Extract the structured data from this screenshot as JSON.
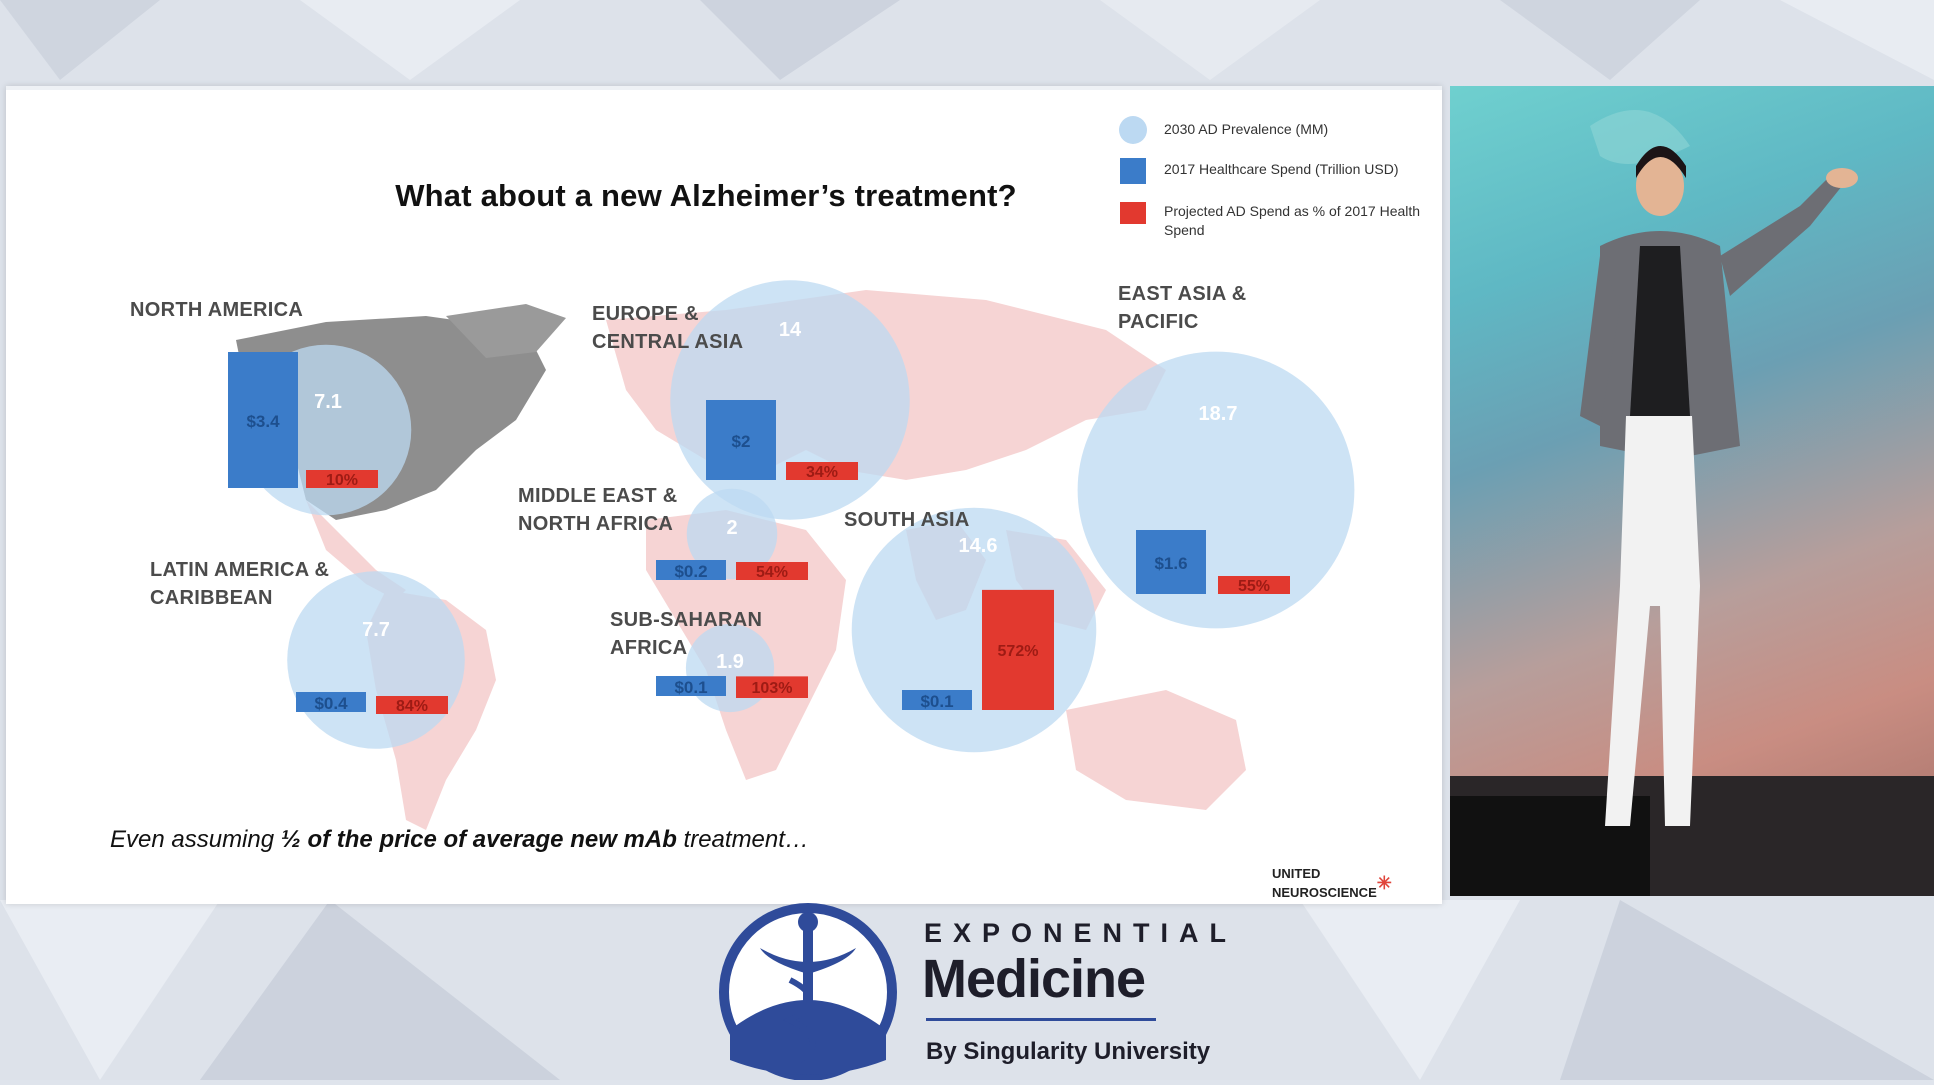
{
  "slide": {
    "title": "What about a new Alzheimer’s treatment?",
    "footnote_prefix": "Even assuming ",
    "footnote_bold": "½ of the price of average new mAb",
    "footnote_suffix": " treatment…",
    "company_logo": "UNITED NEUROSCIENCE"
  },
  "colors": {
    "circle": "#bcd9f2",
    "spend_bar": "#3b7cc9",
    "pct_bar": "#e2392f",
    "map_land": "#f6d4d4",
    "north_america_land": "#8e8e8e"
  },
  "chart_data": {
    "type": "bar",
    "title": "What about a new Alzheimer’s treatment?",
    "legend_position": "top-right",
    "legend": [
      {
        "name": "2030 AD Prevalence (MM)",
        "shape": "circle"
      },
      {
        "name": "2017 Healthcare Spend (Trillion USD)",
        "shape": "square"
      },
      {
        "name": "Projected AD Spend as % of 2017 Health Spend",
        "shape": "square"
      }
    ],
    "regions": [
      {
        "name": "NORTH AMERICA",
        "prevalence": 7.1,
        "prevalence_label": "7.1",
        "spend": 3.4,
        "spend_label": "$3.4",
        "pct": 10,
        "pct_label": "10%"
      },
      {
        "name": "EUROPE & CENTRAL ASIA",
        "prevalence": 14,
        "prevalence_label": "14",
        "spend": 2,
        "spend_label": "$2",
        "pct": 34,
        "pct_label": "34%"
      },
      {
        "name": "EAST ASIA & PACIFIC",
        "prevalence": 18.7,
        "prevalence_label": "18.7",
        "spend": 1.6,
        "spend_label": "$1.6",
        "pct": 55,
        "pct_label": "55%"
      },
      {
        "name": "MIDDLE EAST & NORTH AFRICA",
        "prevalence": 2,
        "prevalence_label": "2",
        "spend": 0.2,
        "spend_label": "$0.2",
        "pct": 54,
        "pct_label": "54%"
      },
      {
        "name": "SOUTH ASIA",
        "prevalence": 14.6,
        "prevalence_label": "14.6",
        "spend": 0.1,
        "spend_label": "$0.1",
        "pct": 572,
        "pct_label": "572%"
      },
      {
        "name": "LATIN AMERICA & CARIBBEAN",
        "prevalence": 7.7,
        "prevalence_label": "7.7",
        "spend": 0.4,
        "spend_label": "$0.4",
        "pct": 84,
        "pct_label": "84%"
      },
      {
        "name": "SUB-SAHARAN AFRICA",
        "prevalence": 1.9,
        "prevalence_label": "1.9",
        "spend": 0.1,
        "spend_label": "$0.1",
        "pct": 103,
        "pct_label": "103%"
      }
    ]
  },
  "branding": {
    "line1": "EXPONENTIAL",
    "line2": "Medicine",
    "line3": "By Singularity University",
    "emblem": "caduceus-icon"
  }
}
